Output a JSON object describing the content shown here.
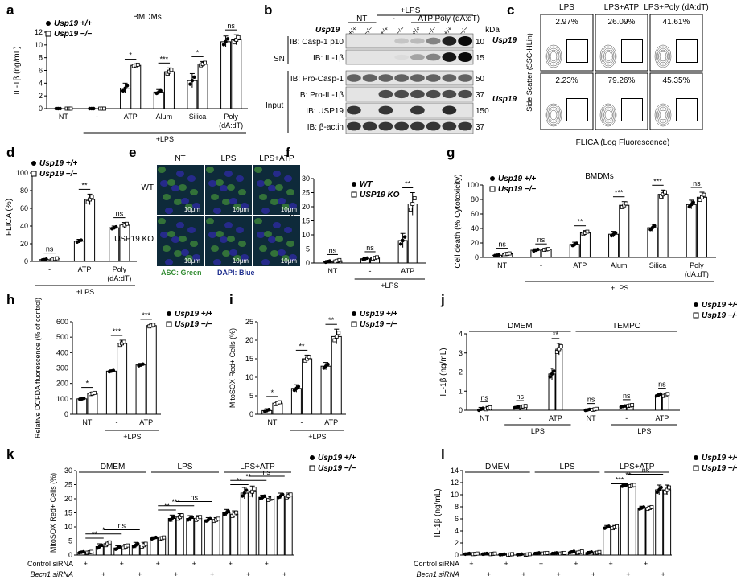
{
  "panel_letters": [
    "a",
    "b",
    "c",
    "d",
    "e",
    "f",
    "g",
    "h",
    "i",
    "j",
    "k",
    "l"
  ],
  "genotype": {
    "gene": "Usp19",
    "wt_sup": "+/+",
    "ko_sup": "−/−"
  },
  "chart_data": [
    {
      "id": "a",
      "type": "bar",
      "title": "BMDMs",
      "ylabel": "IL-1β (ng/mL)",
      "ylim": [
        0,
        12
      ],
      "yticks": [
        0,
        2,
        4,
        6,
        8,
        10,
        12
      ],
      "categories": [
        "NT",
        "-",
        "ATP",
        "Alum",
        "Silica",
        "Poly (dA:dT)"
      ],
      "group_label": "+LPS",
      "group_from": 1,
      "series": [
        {
          "name": "Usp19 +/+",
          "values": [
            0,
            0,
            3.2,
            2.6,
            4.4,
            10.5
          ]
        },
        {
          "name": "Usp19 −/−",
          "values": [
            0,
            0,
            6.8,
            5.8,
            7.0,
            10.8
          ]
        }
      ],
      "errors": [
        [
          0,
          0,
          0.8,
          0.4,
          1.1,
          0.9
        ],
        [
          0,
          0,
          0.2,
          0.6,
          0.4,
          0.8
        ]
      ],
      "sig": [
        {
          "c": 2,
          "t": "*"
        },
        {
          "c": 3,
          "t": "***"
        },
        {
          "c": 4,
          "t": "*"
        },
        {
          "c": 5,
          "t": "ns"
        }
      ]
    },
    {
      "id": "d",
      "type": "bar",
      "ylabel": "FLICA (%)",
      "ylim": [
        0,
        100
      ],
      "yticks": [
        0,
        20,
        40,
        60,
        80,
        100
      ],
      "categories": [
        "-",
        "ATP",
        "Poly (dA:dT)"
      ],
      "group_label": "+LPS",
      "group_from": 0,
      "series": [
        {
          "name": "Usp19 +/+",
          "values": [
            2,
            23,
            38
          ]
        },
        {
          "name": "Usp19 −/−",
          "values": [
            3,
            70,
            41
          ]
        }
      ],
      "errors": [
        [
          1,
          2,
          2
        ],
        [
          1,
          6,
          3
        ]
      ],
      "sig": [
        {
          "c": 0,
          "t": "ns"
        },
        {
          "c": 1,
          "t": "**"
        },
        {
          "c": 2,
          "t": "ns"
        }
      ]
    },
    {
      "id": "f",
      "type": "bar",
      "ylabel": "ASC specks (%)",
      "ylim": [
        0,
        30
      ],
      "yticks": [
        0,
        5,
        10,
        15,
        20,
        25,
        30
      ],
      "categories": [
        "NT",
        "-",
        "ATP"
      ],
      "group_label": "+LPS",
      "group_from": 1,
      "series": [
        {
          "name": "WT",
          "values": [
            0.5,
            1.5,
            8
          ]
        },
        {
          "name": "USP19 KO",
          "values": [
            0.8,
            1.8,
            21
          ]
        }
      ],
      "errors": [
        [
          0.4,
          0.5,
          2.5
        ],
        [
          0.5,
          0.5,
          4
        ]
      ],
      "sig": [
        {
          "c": 0,
          "t": "ns"
        },
        {
          "c": 1,
          "t": "ns"
        },
        {
          "c": 2,
          "t": "**"
        }
      ]
    },
    {
      "id": "g",
      "type": "bar",
      "title": "BMDMs",
      "ylabel": "Cell death (% Cytotoxicity)",
      "ylim": [
        0,
        100
      ],
      "yticks": [
        0,
        20,
        40,
        60,
        80,
        100
      ],
      "categories": [
        "NT",
        "-",
        "ATP",
        "Alum",
        "Silica",
        "Poly (dA:dT)"
      ],
      "group_label": "+LPS",
      "group_from": 1,
      "series": [
        {
          "name": "Usp19 +/+",
          "values": [
            3,
            10,
            18,
            32,
            41,
            73
          ]
        },
        {
          "name": "Usp19 −/−",
          "values": [
            5,
            11,
            34,
            72,
            87,
            83
          ]
        }
      ],
      "errors": [
        [
          1,
          2,
          3,
          4,
          5,
          6
        ],
        [
          1,
          1,
          3,
          5,
          6,
          7
        ]
      ],
      "sig": [
        {
          "c": 0,
          "t": "ns"
        },
        {
          "c": 1,
          "t": "ns"
        },
        {
          "c": 2,
          "t": "**"
        },
        {
          "c": 3,
          "t": "***"
        },
        {
          "c": 4,
          "t": "***"
        },
        {
          "c": 5,
          "t": "ns"
        }
      ]
    },
    {
      "id": "h",
      "type": "bar",
      "ylabel": "Relative DCFDA fluorescence (% of control)",
      "ylim": [
        0,
        600
      ],
      "yticks": [
        0,
        100,
        200,
        300,
        400,
        500,
        600
      ],
      "categories": [
        "NT",
        "-",
        "ATP"
      ],
      "group_label": "+LPS",
      "group_from": 1,
      "series": [
        {
          "name": "Usp19 +/+",
          "values": [
            100,
            280,
            320
          ]
        },
        {
          "name": "Usp19 −/−",
          "values": [
            135,
            460,
            575
          ]
        }
      ],
      "errors": [
        [
          5,
          8,
          10
        ],
        [
          8,
          20,
          10
        ]
      ],
      "sig": [
        {
          "c": 0,
          "t": "*"
        },
        {
          "c": 1,
          "t": "***"
        },
        {
          "c": 2,
          "t": "***"
        }
      ]
    },
    {
      "id": "i",
      "type": "bar",
      "ylabel": "MitoSOX Red+ Cells (%)",
      "ylim": [
        0,
        25
      ],
      "yticks": [
        0,
        5,
        10,
        15,
        20,
        25
      ],
      "categories": [
        "NT",
        "-",
        "ATP"
      ],
      "group_label": "+LPS",
      "group_from": 1,
      "series": [
        {
          "name": "Usp19 +/+",
          "values": [
            1,
            7,
            13
          ]
        },
        {
          "name": "Usp19 −/−",
          "values": [
            3,
            15,
            21
          ]
        }
      ],
      "errors": [
        [
          0.5,
          1,
          1
        ],
        [
          0.5,
          1,
          2
        ]
      ],
      "sig": [
        {
          "c": 0,
          "t": "*"
        },
        {
          "c": 1,
          "t": "**"
        },
        {
          "c": 2,
          "t": "**"
        }
      ]
    },
    {
      "id": "j",
      "type": "bar",
      "ylabel": "IL-1β (ng/mL)",
      "ylim": [
        0,
        4
      ],
      "yticks": [
        0,
        1,
        2,
        3,
        4
      ],
      "categories": [
        "NT",
        "-",
        "ATP",
        "NT",
        "-",
        "ATP"
      ],
      "sections": [
        {
          "label": "DMEM",
          "from": 0,
          "to": 2
        },
        {
          "label": "TEMPO",
          "from": 3,
          "to": 5
        }
      ],
      "sublabels": [
        {
          "label": "LPS",
          "from": 1,
          "to": 2
        },
        {
          "label": "LPS",
          "from": 4,
          "to": 5
        }
      ],
      "series": [
        {
          "name": "Usp19 +/+",
          "values": [
            0.05,
            0.15,
            1.9,
            0.02,
            0.2,
            0.8
          ]
        },
        {
          "name": "Usp19 −/−",
          "values": [
            0.1,
            0.2,
            3.2,
            0.05,
            0.25,
            0.8
          ]
        }
      ],
      "errors": [
        [
          0.1,
          0.05,
          0.3,
          0.05,
          0.05,
          0.1
        ],
        [
          0.1,
          0.05,
          0.3,
          0.05,
          0.05,
          0.1
        ]
      ],
      "sig": [
        {
          "c": 0,
          "t": "ns"
        },
        {
          "c": 1,
          "t": "ns"
        },
        {
          "c": 2,
          "t": "**"
        },
        {
          "c": 3,
          "t": "ns"
        },
        {
          "c": 4,
          "t": "ns"
        },
        {
          "c": 5,
          "t": "ns"
        }
      ]
    },
    {
      "id": "k",
      "type": "bar",
      "ylabel": "MitoSOX Red+ Cells (%)",
      "ylim": [
        0,
        30
      ],
      "yticks": [
        0,
        5,
        10,
        15,
        20,
        25,
        30
      ],
      "sections": [
        {
          "label": "DMEM",
          "from": 0,
          "to": 3
        },
        {
          "label": "LPS",
          "from": 4,
          "to": 7
        },
        {
          "label": "LPS+ATP",
          "from": 8,
          "to": 11
        }
      ],
      "rows": [
        {
          "label": "Control siRNA",
          "marks": [
            "+",
            "",
            "+",
            "",
            "+",
            "",
            "+",
            "",
            "+",
            "",
            "+",
            ""
          ]
        },
        {
          "label": "Becn1 siRNA",
          "marks": [
            "",
            "+",
            "",
            "+",
            "",
            "+",
            "",
            "+",
            "",
            "+",
            "",
            "+"
          ]
        }
      ],
      "series": [
        {
          "name": "Usp19 +/+",
          "values": [
            1,
            3,
            2.5,
            3.5,
            6,
            13,
            13,
            12.5,
            15,
            22,
            20.5,
            21
          ]
        },
        {
          "name": "Usp19 −/−",
          "values": [
            1,
            4,
            3,
            3.5,
            6,
            13.5,
            13,
            12.5,
            14.5,
            22.5,
            20,
            21
          ]
        }
      ],
      "errors": [
        [
          0.3,
          1,
          0.8,
          1,
          0.5,
          1.2,
          1,
          0.8,
          1.2,
          2,
          0.8,
          1
        ],
        [
          0.3,
          1,
          0.8,
          1,
          0.5,
          1.2,
          1,
          0.8,
          1.2,
          2,
          0.8,
          1
        ]
      ],
      "sig": [
        {
          "a": 0,
          "b": 1,
          "t": "**",
          "y": 6
        },
        {
          "a": 0,
          "b": 2,
          "t": "*",
          "y": 7.5
        },
        {
          "a": 1,
          "b": 3,
          "t": "ns",
          "y": 9
        },
        {
          "a": 4,
          "b": 5,
          "t": "**",
          "y": 16
        },
        {
          "a": 4,
          "b": 6,
          "t": "***",
          "y": 17.5
        },
        {
          "a": 5,
          "b": 7,
          "t": "ns",
          "y": 19
        },
        {
          "a": 8,
          "b": 9,
          "t": "**",
          "y": 25
        },
        {
          "a": 8,
          "b": 10,
          "t": "**",
          "y": 26.5
        },
        {
          "a": 9,
          "b": 11,
          "t": "ns",
          "y": 28
        }
      ]
    },
    {
      "id": "l",
      "type": "bar",
      "ylabel": "IL-1β (ng/mL)",
      "ylim": [
        0,
        14
      ],
      "yticks": [
        0,
        2,
        4,
        6,
        8,
        10,
        12,
        14
      ],
      "sections": [
        {
          "label": "DMEM",
          "from": 0,
          "to": 3
        },
        {
          "label": "LPS",
          "from": 4,
          "to": 7
        },
        {
          "label": "LPS+ATP",
          "from": 8,
          "to": 11
        }
      ],
      "rows": [
        {
          "label": "Control siRNA",
          "marks": [
            "+",
            "",
            "+",
            "",
            "+",
            "",
            "+",
            "",
            "+",
            "",
            "+",
            ""
          ]
        },
        {
          "label": "Becn1 siRNA",
          "marks": [
            "",
            "+",
            "",
            "+",
            "",
            "+",
            "",
            "+",
            "",
            "+",
            "",
            "+"
          ]
        }
      ],
      "series": [
        {
          "name": "Usp19 +/+",
          "values": [
            0.2,
            0.2,
            0.1,
            0.1,
            0.3,
            0.3,
            0.5,
            0.4,
            4.6,
            11.5,
            7.8,
            10.8
          ]
        },
        {
          "name": "Usp19 −/−",
          "values": [
            0.2,
            0.2,
            0.1,
            0.1,
            0.3,
            0.3,
            0.5,
            0.4,
            4.6,
            11.5,
            7.8,
            10.8
          ]
        }
      ],
      "errors": [
        [
          0.1,
          0.1,
          0.1,
          0.1,
          0.1,
          0.1,
          0.2,
          0.2,
          0.3,
          0.2,
          0.3,
          0.8
        ],
        [
          0.1,
          0.1,
          0.1,
          0.1,
          0.1,
          0.1,
          0.2,
          0.2,
          0.3,
          0.2,
          0.3,
          0.8
        ]
      ],
      "sig": [
        {
          "a": 8,
          "b": 9,
          "t": "***",
          "y": 11.8
        },
        {
          "a": 8,
          "b": 10,
          "t": "**",
          "y": 12.6
        },
        {
          "a": 9,
          "b": 11,
          "t": "ns",
          "y": 13.4
        }
      ]
    }
  ],
  "blot": {
    "header_group": "+LPS",
    "header_nt": "NT",
    "header_minus": "-",
    "header_atp": "ATP",
    "header_poly": "Poly (dA:dT)",
    "gene_label": "Usp19",
    "kda_label": "kDa",
    "lane_labels": [
      "+/+",
      "−/−",
      "+/+",
      "−/−",
      "+/+",
      "−/−",
      "+/+",
      "−/−"
    ],
    "sn_label": "SN",
    "input_label": "Input",
    "rows": [
      {
        "label": "IB: Casp-1 p10",
        "kda": "10",
        "bands": [
          0,
          0,
          0,
          0.15,
          0.2,
          0.45,
          0.9,
          1
        ]
      },
      {
        "label": "IB: IL-1β",
        "kda": "15",
        "bands": [
          0,
          0,
          0,
          0.05,
          0.3,
          0.45,
          0.95,
          1
        ]
      },
      {
        "label": "IB: Pro-Casp-1",
        "kda": "50",
        "bands": [
          0.6,
          0.6,
          0.6,
          0.6,
          0.6,
          0.6,
          0.6,
          0.6
        ]
      },
      {
        "label": "IB: Pro-IL-1β",
        "kda": "37",
        "bands": [
          0,
          0,
          0.7,
          0.7,
          0.7,
          0.7,
          0.7,
          0.7
        ]
      },
      {
        "label": "IB: USP19",
        "kda": "150",
        "bands": [
          0.8,
          0,
          0.8,
          0,
          0.8,
          0,
          0.85,
          0
        ]
      },
      {
        "label": "IB: β-actin",
        "kda": "37",
        "bands": [
          0.8,
          0.8,
          0.8,
          0.8,
          0.8,
          0.8,
          0.8,
          0.8
        ]
      }
    ]
  },
  "flow": {
    "cols": [
      "LPS",
      "LPS+ATP",
      "LPS+Poly (dA:dT)"
    ],
    "rows": [
      "Usp19 +/+",
      "Usp19 −/−"
    ],
    "values": [
      [
        "2.97%",
        "26.09%",
        "41.61%"
      ],
      [
        "2.23%",
        "79.26%",
        "45.35%"
      ]
    ],
    "ylabel": "Side Scatter (SSC-HLin)",
    "xlabel": "FLICA (Log Fluorescence)"
  },
  "micro": {
    "cols": [
      "NT",
      "LPS",
      "LPS+ATP"
    ],
    "rows": [
      "WT",
      "USP19 KO"
    ],
    "scale": "10μm",
    "legend_asc": "ASC: Green",
    "legend_dapi": "DAPI: Blue",
    "stain_color": "#3a7f3a",
    "dapi_color": "#2a2a9a"
  }
}
